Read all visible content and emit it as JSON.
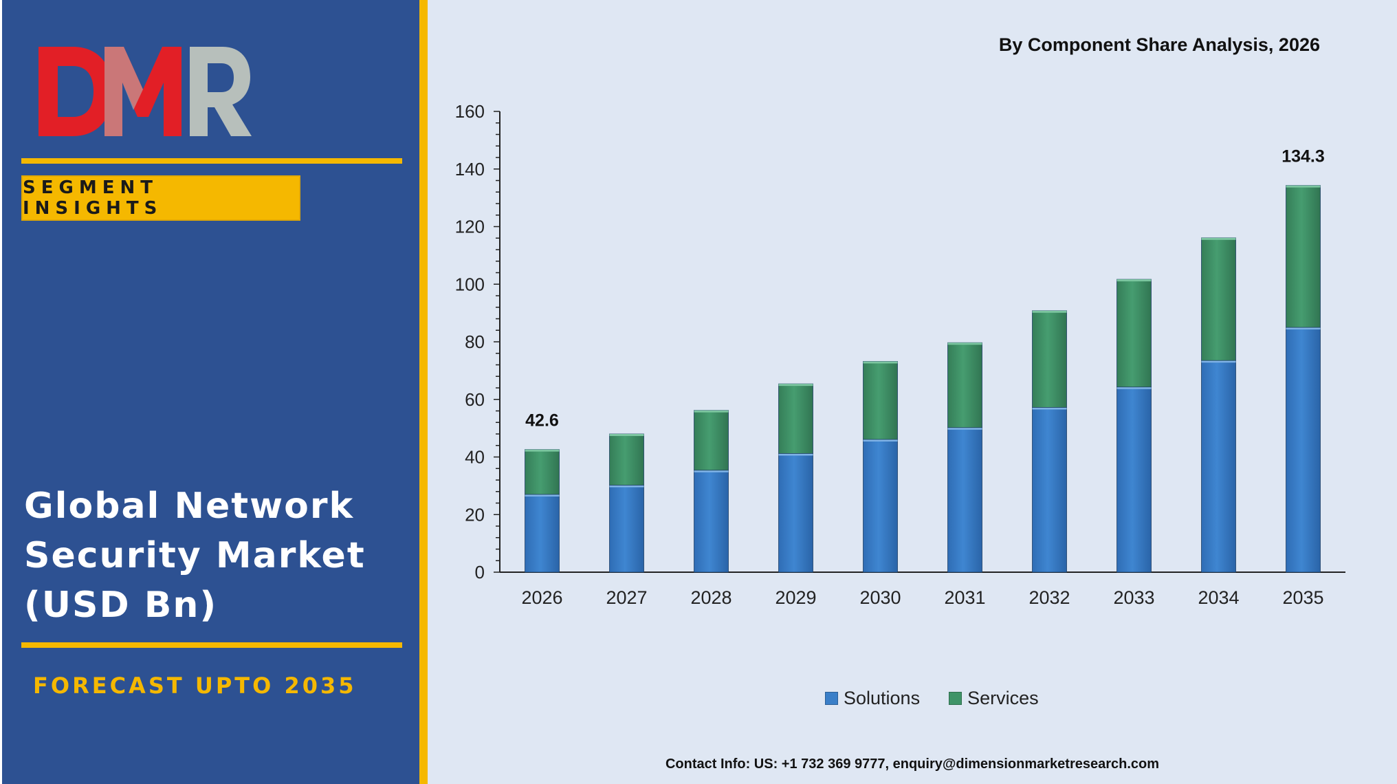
{
  "brand": {
    "logo_text": "DMR"
  },
  "sidebar": {
    "badge": "SEGMENT INSIGHTS",
    "title_lines": [
      "Global Network",
      "Security Market",
      "(USD Bn)"
    ],
    "forecast": "FORECAST UPTO 2035"
  },
  "colors": {
    "left_panel": "#2d5192",
    "accent_yellow": "#f5b800",
    "right_panel": "#dfe7f3",
    "solutions": "#3a7fc8",
    "services": "#3f9468",
    "logo_red": "#e21f26",
    "logo_grey": "#b7bfbb"
  },
  "chart_data": {
    "type": "bar",
    "stacked": true,
    "title": "By Component Share Analysis, 2026",
    "categories": [
      "2026",
      "2027",
      "2028",
      "2029",
      "2030",
      "2031",
      "2032",
      "2033",
      "2034",
      "2035"
    ],
    "series": [
      {
        "name": "Solutions",
        "values": [
          27.0,
          30.2,
          35.4,
          41.2,
          46.1,
          50.2,
          57.2,
          64.3,
          73.5,
          85.0
        ]
      },
      {
        "name": "Services",
        "values": [
          15.6,
          17.8,
          20.8,
          24.2,
          27.1,
          29.5,
          33.6,
          37.4,
          42.6,
          49.3
        ]
      }
    ],
    "data_labels": [
      {
        "category": "2026",
        "text": "42.6"
      },
      {
        "category": "2035",
        "text": "134.3"
      }
    ],
    "yticks": [
      "0",
      "20",
      "40",
      "60",
      "80",
      "100",
      "120",
      "140",
      "160"
    ],
    "ylim": [
      0,
      160
    ],
    "xlabel": "",
    "ylabel": "",
    "grid": false,
    "legend_position": "bottom"
  },
  "footer": {
    "contact": "Contact Info: US: +1 732 369 9777, enquiry@dimensionmarketresearch.com"
  }
}
